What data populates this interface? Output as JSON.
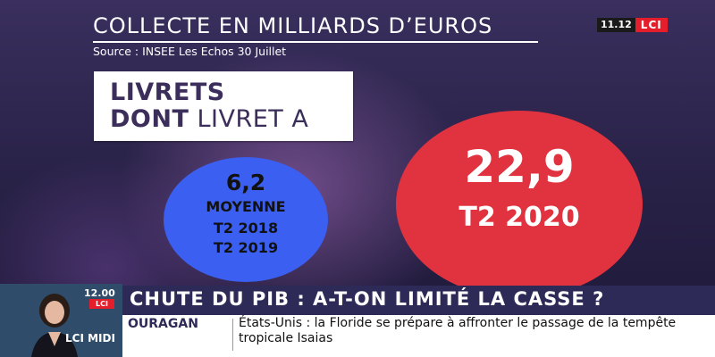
{
  "title": "COLLECTE EN MILLIARDS D’EUROS",
  "source": "Source : INSEE Les Echos 30 Juillet",
  "box": {
    "line1": "LIVRETS",
    "line2_bold": "DONT",
    "line2_normal": " LIVRET A"
  },
  "blue_circle": {
    "value": "6,2",
    "line1": "MOYENNE",
    "line2": "T2 2018",
    "line3": "T2 2019",
    "color": "#3b5ff0"
  },
  "red_circle": {
    "value": "22,9",
    "label": "T2 2020",
    "color": "#e0333f"
  },
  "channel": {
    "time": "11.12",
    "logo": "LCI"
  },
  "anchor": {
    "time": "12.00",
    "logo": "LCI",
    "show": "LCI MIDI"
  },
  "headline": "CHUTE DU PIB : A-T-ON LIMITÉ LA CASSE ?",
  "ticker": {
    "tag": "OURAGAN",
    "text": "États-Unis : la Floride se prépare à affronter le passage de la tempête tropicale Isaias"
  }
}
